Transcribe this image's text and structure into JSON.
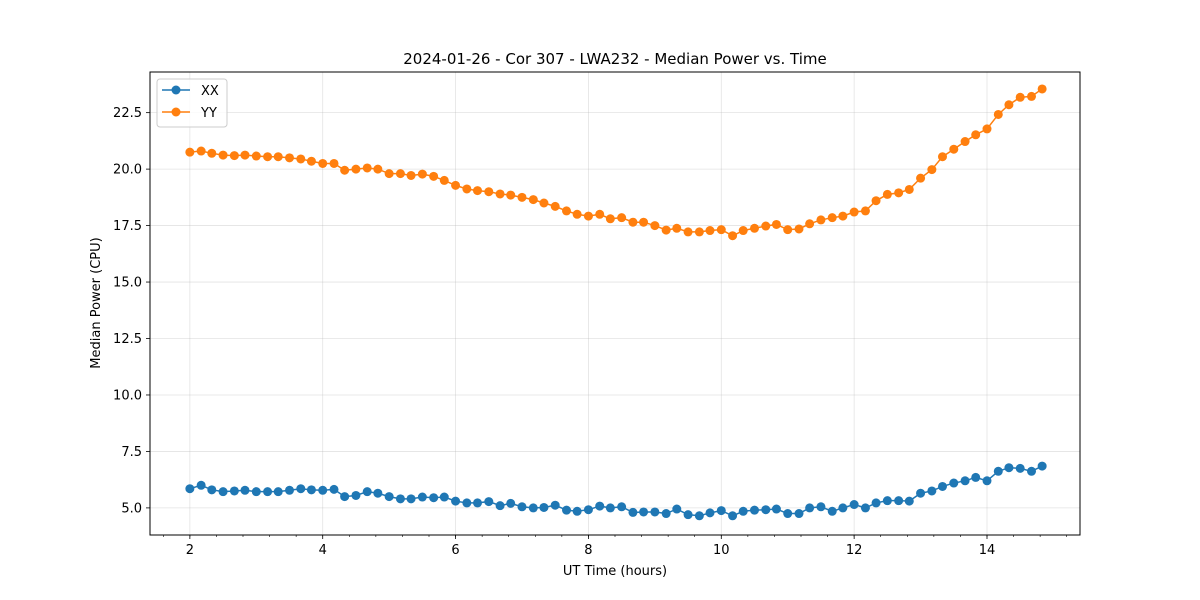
{
  "chart_data": {
    "type": "line",
    "title": "2024-01-26 - Cor 307 - LWA232 - Median Power vs. Time",
    "xlabel": "UT Time (hours)",
    "ylabel": "Median Power (CPU)",
    "xlim": [
      1.4,
      15.4
    ],
    "ylim": [
      3.8,
      24.3
    ],
    "x_ticks": [
      2,
      4,
      6,
      8,
      10,
      12,
      14
    ],
    "x_tick_labels": [
      "2",
      "4",
      "6",
      "8",
      "10",
      "12",
      "14"
    ],
    "y_ticks": [
      5.0,
      7.5,
      10.0,
      12.5,
      15.0,
      17.5,
      20.0,
      22.5
    ],
    "y_tick_labels": [
      "5.0",
      "7.5",
      "10.0",
      "12.5",
      "15.0",
      "17.5",
      "20.0",
      "22.5"
    ],
    "grid": true,
    "legend_position": "top-left",
    "x": [
      2.0,
      2.17,
      2.33,
      2.5,
      2.67,
      2.83,
      3.0,
      3.17,
      3.33,
      3.5,
      3.67,
      3.83,
      4.0,
      4.17,
      4.33,
      4.5,
      4.67,
      4.83,
      5.0,
      5.17,
      5.33,
      5.5,
      5.67,
      5.83,
      6.0,
      6.17,
      6.33,
      6.5,
      6.67,
      6.83,
      7.0,
      7.17,
      7.33,
      7.5,
      7.67,
      7.83,
      8.0,
      8.17,
      8.33,
      8.5,
      8.67,
      8.83,
      9.0,
      9.17,
      9.33,
      9.5,
      9.67,
      9.83,
      10.0,
      10.17,
      10.33,
      10.5,
      10.67,
      10.83,
      11.0,
      11.17,
      11.33,
      11.5,
      11.67,
      11.83,
      12.0,
      12.17,
      12.33,
      12.5,
      12.67,
      12.83,
      13.0,
      13.17,
      13.33,
      13.5,
      13.67,
      13.83,
      14.0,
      14.17,
      14.33,
      14.5,
      14.67,
      14.83
    ],
    "series": [
      {
        "name": "XX",
        "color": "#1f77b4",
        "values": [
          5.85,
          6.0,
          5.8,
          5.72,
          5.75,
          5.78,
          5.72,
          5.72,
          5.72,
          5.78,
          5.85,
          5.8,
          5.78,
          5.82,
          5.5,
          5.55,
          5.72,
          5.65,
          5.5,
          5.4,
          5.4,
          5.48,
          5.45,
          5.48,
          5.3,
          5.22,
          5.22,
          5.28,
          5.1,
          5.2,
          5.05,
          5.0,
          5.02,
          5.12,
          4.9,
          4.85,
          4.92,
          5.08,
          5.0,
          5.05,
          4.8,
          4.82,
          4.82,
          4.75,
          4.95,
          4.7,
          4.65,
          4.78,
          4.88,
          4.65,
          4.85,
          4.9,
          4.92,
          4.95,
          4.75,
          4.75,
          5.0,
          5.05,
          4.85,
          5.0,
          5.15,
          5.0,
          5.22,
          5.32,
          5.32,
          5.3,
          5.65,
          5.75,
          5.95,
          6.1,
          6.2,
          6.35,
          6.2,
          6.62,
          6.78,
          6.75,
          6.62,
          6.85
        ]
      },
      {
        "name": "YY",
        "color": "#ff7f0e",
        "values": [
          20.75,
          20.8,
          20.7,
          20.62,
          20.6,
          20.62,
          20.58,
          20.55,
          20.55,
          20.5,
          20.45,
          20.35,
          20.25,
          20.25,
          19.95,
          20.0,
          20.05,
          20.0,
          19.8,
          19.8,
          19.72,
          19.78,
          19.68,
          19.5,
          19.28,
          19.12,
          19.05,
          19.0,
          18.9,
          18.85,
          18.75,
          18.65,
          18.5,
          18.35,
          18.15,
          18.0,
          17.92,
          18.0,
          17.8,
          17.85,
          17.65,
          17.65,
          17.5,
          17.3,
          17.38,
          17.22,
          17.22,
          17.28,
          17.32,
          17.05,
          17.28,
          17.38,
          17.48,
          17.55,
          17.32,
          17.35,
          17.58,
          17.75,
          17.85,
          17.92,
          18.1,
          18.15,
          18.6,
          18.88,
          18.95,
          19.1,
          19.6,
          19.98,
          20.55,
          20.88,
          21.22,
          21.52,
          21.78,
          22.42,
          22.85,
          23.18,
          23.22,
          23.55
        ]
      }
    ]
  }
}
